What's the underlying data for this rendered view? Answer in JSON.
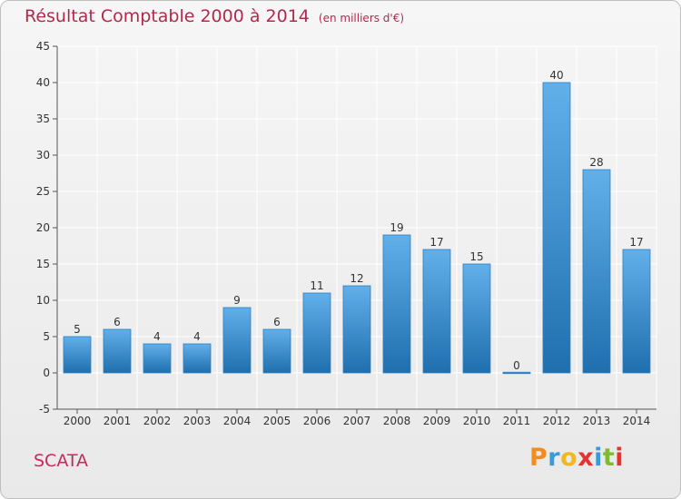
{
  "header": {
    "title": "Résultat Comptable 2000 à 2014",
    "subtitle": "(en milliers d'€)"
  },
  "entity_name": "SCATA",
  "logo": {
    "text": "Proxiti",
    "letters": [
      "P",
      "r",
      "o",
      "x",
      "i",
      "t",
      "i"
    ],
    "colors": [
      "#f28c1e",
      "#3a9ad9",
      "#f4b81c",
      "#e8322e",
      "#3a9ad9",
      "#7dbb2f",
      "#e8322e"
    ]
  },
  "colors": {
    "title": "#b5284e",
    "bar_light": "#62b0ea",
    "bar_dark": "#1f6fae"
  },
  "chart_data": {
    "type": "bar",
    "title": "Résultat Comptable 2000 à 2014",
    "subtitle": "(en milliers d'€)",
    "categories": [
      "2000",
      "2001",
      "2002",
      "2003",
      "2004",
      "2005",
      "2006",
      "2007",
      "2008",
      "2009",
      "2010",
      "2011",
      "2012",
      "2013",
      "2014"
    ],
    "values": [
      5,
      6,
      4,
      4,
      9,
      6,
      11,
      12,
      19,
      17,
      15,
      0,
      40,
      28,
      17
    ],
    "value_labels": [
      "5",
      "6",
      "4",
      "4",
      "9",
      "6",
      "11",
      "12",
      "19",
      "17",
      "15",
      "0",
      "40",
      "28",
      "17"
    ],
    "yticks": [
      "-5",
      "0",
      "5",
      "10",
      "15",
      "20",
      "25",
      "30",
      "35",
      "40",
      "45"
    ],
    "ylim": [
      -5,
      45
    ],
    "ystep": 5,
    "grid": true,
    "legend": "none"
  }
}
